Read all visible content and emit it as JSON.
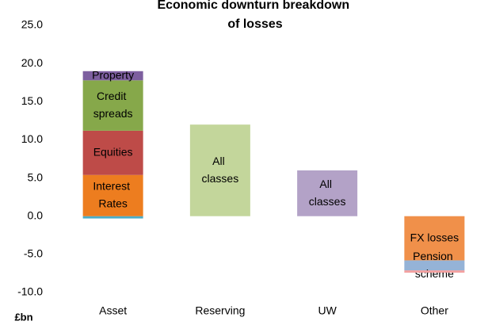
{
  "chart_data": {
    "type": "stacked_bar",
    "title": "Economic downturn breakdown of losses",
    "y_label": "£bn",
    "categories": [
      "Asset",
      "Reserving",
      "UW",
      "Other"
    ],
    "ylim": [
      -10,
      25
    ],
    "yticks": [
      {
        "value": -10,
        "label": "-10.0"
      },
      {
        "value": -5,
        "label": "-5.0"
      },
      {
        "value": 0,
        "label": "0.0"
      },
      {
        "value": 5,
        "label": "5.0"
      },
      {
        "value": 10,
        "label": "10.0"
      },
      {
        "value": 15,
        "label": "15.0"
      },
      {
        "value": 20,
        "label": "20.0"
      },
      {
        "value": 25,
        "label": "25.0"
      }
    ],
    "grid": false,
    "series": [
      {
        "color": "#4bacc6",
        "values": [
          -0.3,
          null,
          null,
          null
        ]
      },
      {
        "name": "Interest Rates",
        "color": "#ed7d1f",
        "values": [
          5.4,
          null,
          null,
          null
        ]
      },
      {
        "name": "Equities",
        "color": "#be4b48",
        "values": [
          5.8,
          null,
          null,
          null
        ]
      },
      {
        "name": "Credit spreads",
        "color": "#86a84a",
        "values": [
          6.6,
          null,
          null,
          null
        ]
      },
      {
        "name": "Property",
        "color": "#7d5f9f",
        "values": [
          1.2,
          null,
          null,
          null
        ]
      },
      {
        "name": "All classes",
        "color": "#c3d69b",
        "values": [
          null,
          12.0,
          null,
          null
        ]
      },
      {
        "name": "All classes",
        "color": "#b3a2c7",
        "values": [
          null,
          null,
          6.0,
          null
        ]
      },
      {
        "name": "FX losses",
        "color": "#f0904a",
        "values": [
          null,
          null,
          null,
          -5.8
        ]
      },
      {
        "name": "Pension scheme",
        "color": "#95b3d7",
        "values": [
          null,
          null,
          null,
          -1.3
        ]
      },
      {
        "color": "#f2a0a0",
        "values": [
          null,
          null,
          null,
          -0.3
        ]
      }
    ]
  }
}
